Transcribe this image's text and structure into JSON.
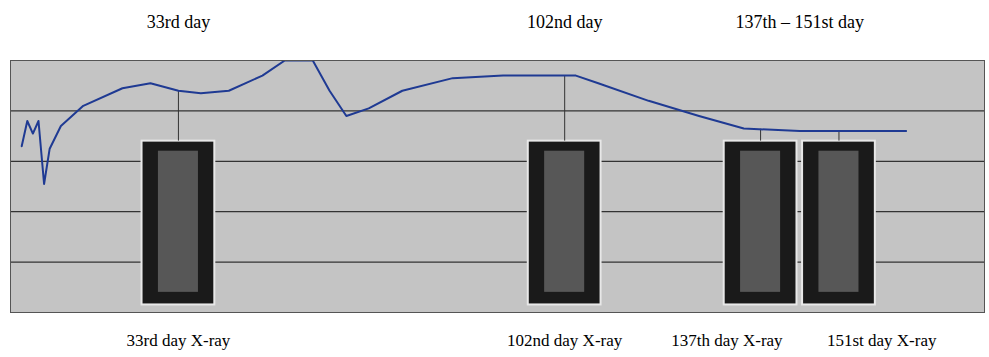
{
  "chart_data": {
    "type": "line",
    "x": [
      5,
      6,
      7,
      8,
      9,
      10,
      12,
      16,
      23,
      28,
      33,
      37,
      42,
      48,
      52,
      57,
      60,
      63,
      67,
      73,
      82,
      91,
      100,
      104,
      108,
      117,
      126,
      134,
      144,
      154,
      163
    ],
    "values": [
      3.3,
      3.8,
      3.55,
      3.8,
      2.55,
      3.25,
      3.7,
      4.1,
      4.45,
      4.55,
      4.4,
      4.35,
      4.4,
      4.7,
      5.0,
      5.0,
      4.4,
      3.9,
      4.05,
      4.4,
      4.65,
      4.7,
      4.7,
      4.7,
      4.55,
      4.2,
      3.9,
      3.65,
      3.6,
      3.6,
      3.6
    ],
    "color": "#1f3a93",
    "xlim": [
      3,
      177
    ],
    "ylim": [
      0,
      5
    ],
    "yticks": [
      0,
      1,
      2,
      3,
      4,
      5
    ],
    "grid": true,
    "tick_labels": false,
    "annotations": [
      {
        "text": "33rd day",
        "days": [
          33
        ]
      },
      {
        "text": "102nd day",
        "days": [
          102
        ]
      },
      {
        "text": "137th – 151st day",
        "days": [
          137,
          151
        ]
      }
    ],
    "xray_labels": [
      {
        "text": "33rd day X-ray",
        "day": 33
      },
      {
        "text": "102nd day X-ray",
        "day": 102
      },
      {
        "text": "137th day X-ray",
        "day": 137
      },
      {
        "text": "151st day X-ray",
        "day": 151
      }
    ]
  }
}
